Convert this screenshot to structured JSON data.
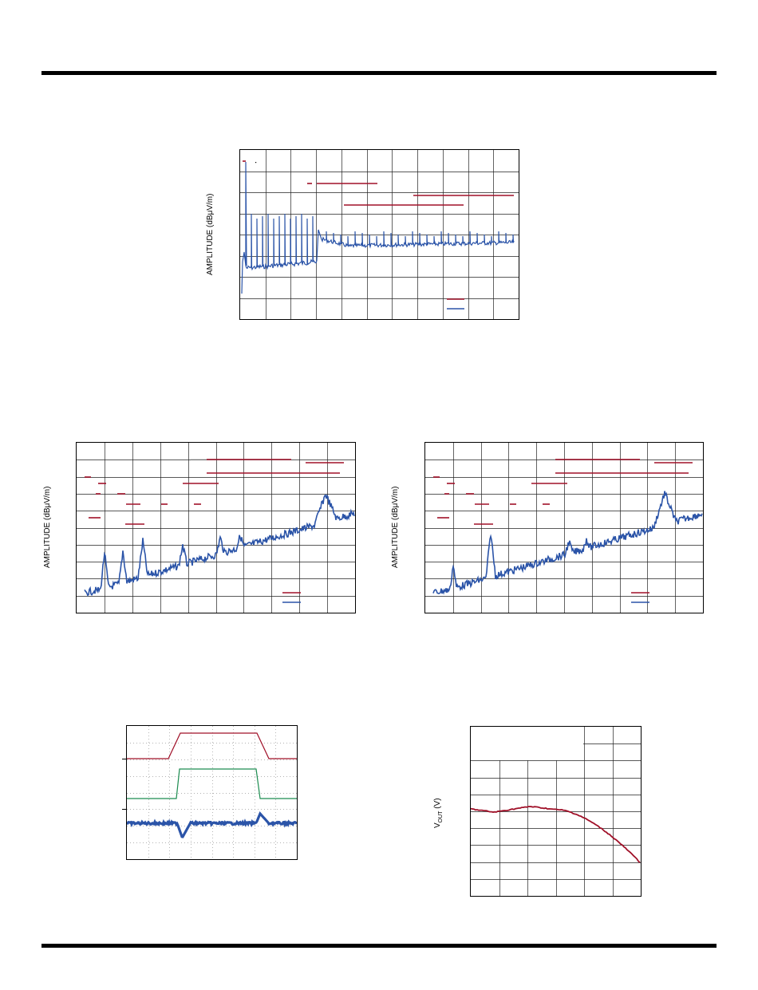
{
  "page": {
    "rule_color": "#000000"
  },
  "colors": {
    "red": "#a01028",
    "blue": "#2b54a8",
    "green": "#1c8c50",
    "grid": "#222222"
  },
  "chart_data": [
    {
      "type": "line",
      "ylabel": "AMPLITUDE (dBμV/m)",
      "grid": true,
      "series": [
        {
          "kind": "limit-lines",
          "color": "#a01028"
        },
        {
          "kind": "emission-spectrum",
          "color": "#2b54a8"
        }
      ]
    },
    {
      "type": "line",
      "ylabel": "AMPLITUDE (dBμV/m)",
      "grid": true,
      "series": [
        {
          "kind": "limit-lines",
          "color": "#a01028"
        },
        {
          "kind": "emission-spectrum",
          "color": "#2b54a8"
        }
      ]
    },
    {
      "type": "line",
      "ylabel": "AMPLITUDE (dBμV/m)",
      "grid": true,
      "series": [
        {
          "kind": "limit-lines",
          "color": "#a01028"
        },
        {
          "kind": "emission-spectrum",
          "color": "#2b54a8"
        }
      ]
    },
    {
      "type": "line",
      "grid": true,
      "series": [
        {
          "kind": "pulse",
          "color": "#a01028"
        },
        {
          "kind": "pulse",
          "color": "#1c8c50"
        },
        {
          "kind": "transient-response",
          "color": "#2b54a8"
        }
      ]
    },
    {
      "type": "line",
      "ylabel": "VOUT (V)",
      "ylabel_main": "V",
      "ylabel_sub": "OUT",
      "ylabel_unit": " (V)",
      "grid": true,
      "series": [
        {
          "kind": "vout-curve",
          "color": "#a01028"
        }
      ]
    }
  ]
}
